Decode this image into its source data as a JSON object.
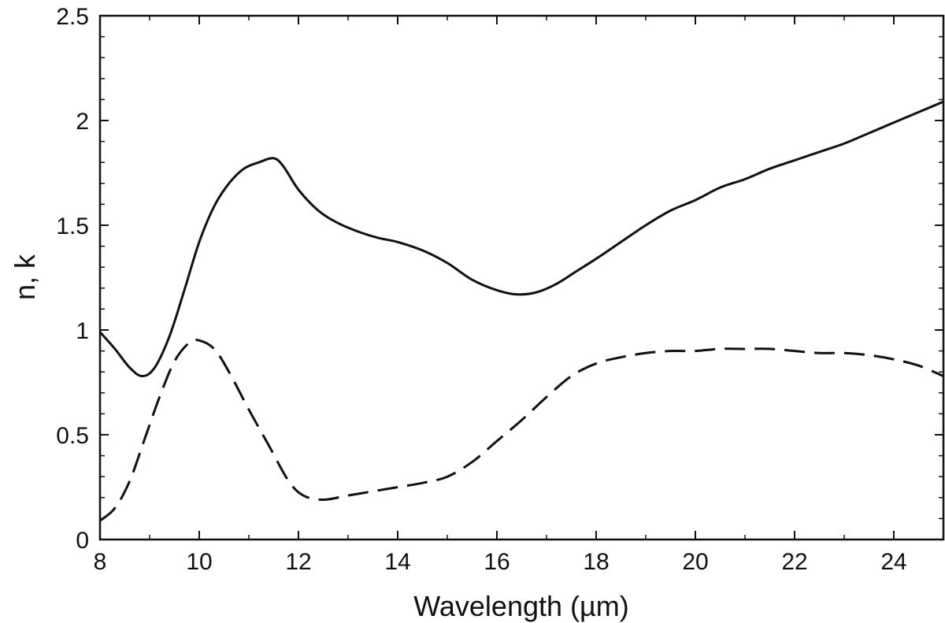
{
  "chart_data": {
    "type": "line",
    "title": "",
    "xlabel": "Wavelength (µm)",
    "ylabel": "n, k",
    "xlim": [
      8,
      25
    ],
    "ylim": [
      0,
      2.5
    ],
    "grid": false,
    "legend": "none",
    "x_ticks": [
      8,
      10,
      12,
      14,
      16,
      18,
      20,
      22,
      24
    ],
    "x_tick_labels": [
      "8",
      "10",
      "12",
      "14",
      "16",
      "18",
      "20",
      "22",
      "24"
    ],
    "y_ticks": [
      0,
      0.5,
      1,
      1.5,
      2,
      2.5
    ],
    "y_tick_labels": [
      "0",
      "0.5",
      "1",
      "1.5",
      "2",
      "2.5"
    ],
    "series": [
      {
        "name": "n",
        "style": "solid",
        "color": "#111111",
        "x": [
          8.0,
          8.3,
          8.6,
          8.85,
          9.1,
          9.4,
          9.7,
          10.0,
          10.3,
          10.6,
          10.9,
          11.2,
          11.5,
          11.7,
          12.0,
          12.4,
          12.8,
          13.2,
          13.6,
          14.0,
          14.5,
          15.0,
          15.5,
          16.0,
          16.4,
          16.8,
          17.2,
          17.6,
          18.0,
          18.5,
          19.0,
          19.5,
          20.0,
          20.5,
          21.0,
          21.5,
          22.0,
          22.5,
          23.0,
          23.5,
          24.0,
          24.5,
          25.0
        ],
        "y": [
          0.99,
          0.91,
          0.82,
          0.78,
          0.82,
          0.97,
          1.19,
          1.42,
          1.59,
          1.7,
          1.77,
          1.8,
          1.82,
          1.78,
          1.67,
          1.57,
          1.51,
          1.47,
          1.44,
          1.42,
          1.38,
          1.32,
          1.24,
          1.19,
          1.17,
          1.18,
          1.22,
          1.28,
          1.34,
          1.42,
          1.5,
          1.57,
          1.62,
          1.68,
          1.72,
          1.77,
          1.81,
          1.85,
          1.89,
          1.94,
          1.99,
          2.04,
          2.09
        ]
      },
      {
        "name": "k",
        "style": "dashed",
        "color": "#111111",
        "x": [
          8.0,
          8.3,
          8.6,
          8.9,
          9.2,
          9.5,
          9.8,
          10.0,
          10.3,
          10.6,
          11.0,
          11.4,
          11.8,
          12.1,
          12.5,
          13.0,
          13.5,
          14.0,
          14.5,
          15.0,
          15.5,
          16.0,
          16.5,
          17.0,
          17.5,
          18.0,
          18.5,
          19.0,
          19.5,
          20.0,
          20.5,
          21.0,
          21.5,
          22.0,
          22.5,
          23.0,
          23.5,
          24.0,
          24.5,
          25.0
        ],
        "y": [
          0.09,
          0.15,
          0.28,
          0.48,
          0.68,
          0.85,
          0.94,
          0.95,
          0.91,
          0.8,
          0.62,
          0.45,
          0.28,
          0.21,
          0.19,
          0.21,
          0.23,
          0.25,
          0.27,
          0.3,
          0.37,
          0.47,
          0.57,
          0.68,
          0.78,
          0.84,
          0.87,
          0.89,
          0.9,
          0.9,
          0.91,
          0.91,
          0.91,
          0.9,
          0.89,
          0.89,
          0.88,
          0.86,
          0.83,
          0.78
        ]
      }
    ]
  }
}
